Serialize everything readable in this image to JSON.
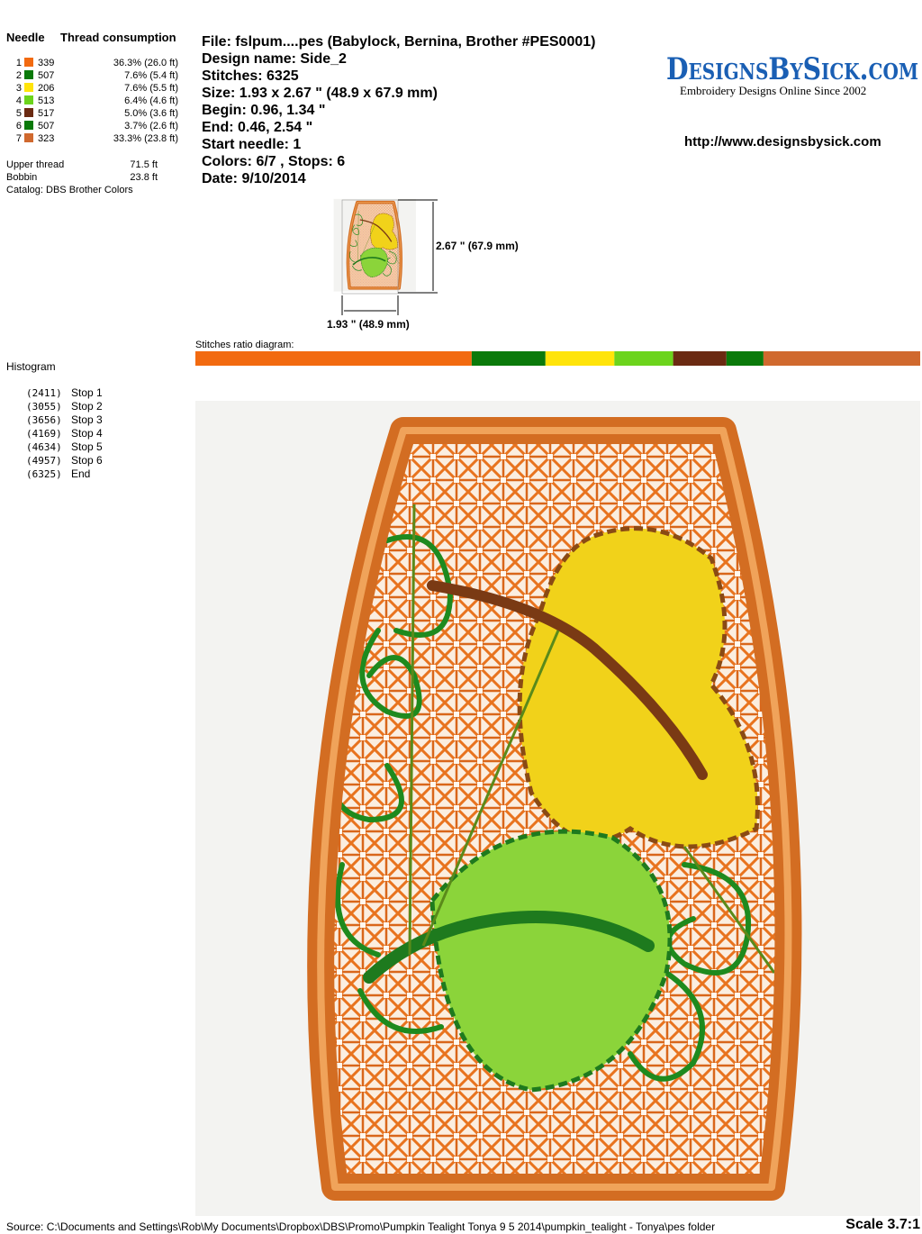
{
  "threads": {
    "header": {
      "needle": "Needle",
      "consumption": "Thread consumption"
    },
    "rows": [
      {
        "needle": "1",
        "color": "#f26a10",
        "code": "339",
        "consumption": "36.3% (26.0 ft)"
      },
      {
        "needle": "2",
        "color": "#0a7a0a",
        "code": "507",
        "consumption": "7.6% (5.4 ft)"
      },
      {
        "needle": "3",
        "color": "#ffe40a",
        "code": "206",
        "consumption": "7.6% (5.5 ft)"
      },
      {
        "needle": "4",
        "color": "#6cd41c",
        "code": "513",
        "consumption": "6.4% (4.6 ft)"
      },
      {
        "needle": "5",
        "color": "#6b2a12",
        "code": "517",
        "consumption": "5.0% (3.6 ft)"
      },
      {
        "needle": "6",
        "color": "#0a7a0a",
        "code": "507",
        "consumption": "3.7% (2.6 ft)"
      },
      {
        "needle": "7",
        "color": "#d0692e",
        "code": "323",
        "consumption": "33.3% (23.8 ft)"
      }
    ],
    "totals": [
      {
        "label": "Upper thread",
        "value": "71.5 ft"
      },
      {
        "label": "Bobbin",
        "value": "23.8 ft"
      }
    ],
    "catalog": "Catalog: DBS Brother Colors"
  },
  "info": [
    "File: fslpum....pes  (Babylock, Bernina, Brother #PES0001)",
    "Design name: Side_2",
    "Stitches: 6325",
    "Size: 1.93 x 2.67 \" (48.9 x 67.9 mm)",
    "Begin: 0.96, 1.34 \"",
    "End: 0.46, 2.54 \"",
    "Start needle: 1",
    "Colors: 6/7 , Stops: 6",
    "Date: 9/10/2014"
  ],
  "logo": {
    "name": "DesignsBySick.com",
    "tagline": "Embroidery Designs Online Since 2002",
    "url": "http://www.designsbysick.com"
  },
  "thumbnail": {
    "height_label": "2.67 \" (67.9 mm)",
    "width_label": "1.93 \" (48.9 mm)"
  },
  "ratio_title": "Stitches ratio diagram:",
  "histogram": {
    "title": "Histogram",
    "stops": [
      {
        "count": {
          "value": 2411,
          "label": "(2411)"
        },
        "label": "Stop 1"
      },
      {
        "count": {
          "value": 3055,
          "label": "(3055)"
        },
        "label": "Stop 2"
      },
      {
        "count": {
          "value": 3656,
          "label": "(3656)"
        },
        "label": "Stop 3"
      },
      {
        "count": {
          "value": 4169,
          "label": "(4169)"
        },
        "label": "Stop 4"
      },
      {
        "count": {
          "value": 4634,
          "label": "(4634)"
        },
        "label": "Stop 5"
      },
      {
        "count": {
          "value": 4957,
          "label": "(4957)"
        },
        "label": "Stop 6"
      },
      {
        "count": {
          "value": 6325,
          "label": "(6325)"
        },
        "label": "End"
      }
    ]
  },
  "footer": {
    "source": "Source: C:\\Documents and Settings\\Rob\\My Documents\\Dropbox\\DBS\\Promo\\Pumpkin Tealight Tonya 9 5 2014\\pumpkin_tealight - Tonya\\pes folder",
    "scale": "Scale 3.7:1"
  }
}
